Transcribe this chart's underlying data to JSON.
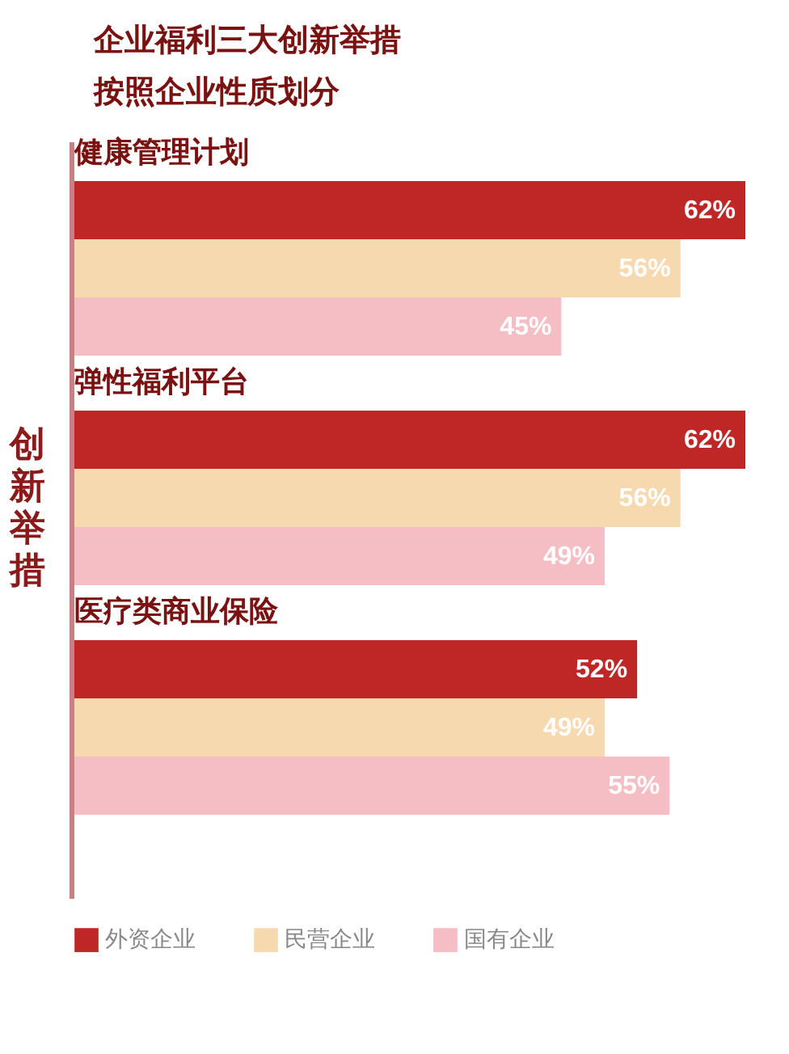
{
  "chart_data": {
    "type": "bar",
    "orientation": "horizontal",
    "title": "企业福利三大创新举措",
    "subtitle": "按照企业性质划分",
    "ylabel": "创新举措",
    "categories": [
      "健康管理计划",
      "弹性福利平台",
      "医疗类商业保险"
    ],
    "legend": "bottom",
    "series": [
      {
        "name": "外资企业",
        "color": "#bf2626",
        "values": [
          62,
          62,
          52
        ],
        "value_labels": [
          "62%",
          "62%",
          "52%"
        ]
      },
      {
        "name": "民营企业",
        "color": "#f7d9b0",
        "values": [
          56,
          56,
          49
        ],
        "value_labels": [
          "56%",
          "56%",
          "49%"
        ]
      },
      {
        "name": "国有企业",
        "color": "#f4bec4",
        "values": [
          45,
          49,
          55
        ],
        "value_labels": [
          "45%",
          "49%",
          "55%"
        ]
      }
    ]
  }
}
